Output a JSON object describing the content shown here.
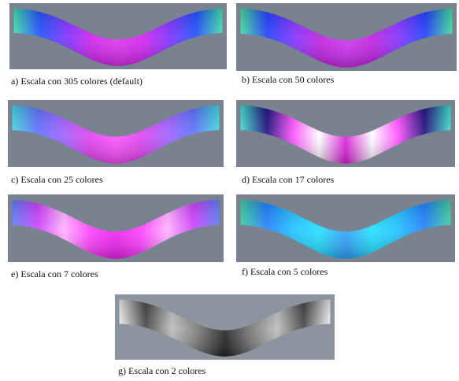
{
  "figures": [
    {
      "caption": "a) Escala con 305 colores (default)"
    },
    {
      "caption": "b) Escala con 50 colores"
    },
    {
      "caption": "c) Escala con 25 colores"
    },
    {
      "caption": "d) Escala con 17 colores"
    },
    {
      "caption": "e) Escala con 7 colores"
    },
    {
      "caption": "f) Escala con 5 colores"
    },
    {
      "caption": "g) Escala con 2 colores"
    }
  ]
}
